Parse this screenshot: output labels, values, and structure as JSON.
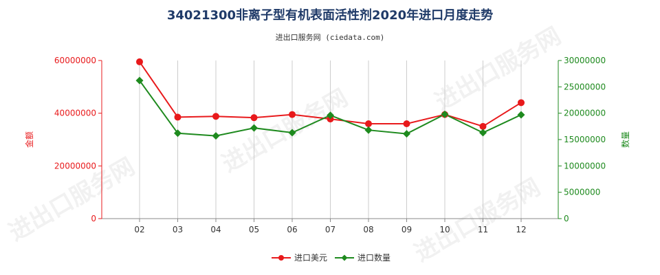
{
  "chart_data": {
    "type": "line",
    "title": "34021300非离子型有机表面活性剂2020年进口月度走势",
    "subtitle": "进出口服务网 (ciedata.com)",
    "categories": [
      "02",
      "03",
      "04",
      "05",
      "06",
      "07",
      "08",
      "09",
      "10",
      "11",
      "12"
    ],
    "y_left": {
      "label": "金额",
      "range": [
        0,
        60000000
      ],
      "ticks": [
        0,
        20000000,
        40000000,
        60000000
      ],
      "tick_labels": [
        "0",
        "20000000",
        "40000000",
        "60000000"
      ],
      "color": "#e8191b"
    },
    "y_right": {
      "label": "数量",
      "range": [
        0,
        30000000
      ],
      "ticks": [
        0,
        5000000,
        10000000,
        15000000,
        20000000,
        25000000,
        30000000
      ],
      "tick_labels": [
        "0",
        "5000000",
        "10000000",
        "15000000",
        "20000000",
        "25000000",
        "30000000"
      ],
      "color": "#1e8a1e"
    },
    "series": [
      {
        "name": "进口美元",
        "axis": "left",
        "color": "#e8191b",
        "marker": "circle",
        "values": [
          59500000,
          38500000,
          38800000,
          38300000,
          39500000,
          37800000,
          36000000,
          36000000,
          39500000,
          35000000,
          44000000
        ]
      },
      {
        "name": "进口数量",
        "axis": "right",
        "color": "#1e8a1e",
        "marker": "diamond",
        "values": [
          26200000,
          16200000,
          15700000,
          17200000,
          16300000,
          19600000,
          16800000,
          16100000,
          19800000,
          16300000,
          19700000
        ]
      }
    ],
    "grid": "vertical",
    "legend_position": "bottom-center"
  },
  "watermark": {
    "text": "进出口服务网"
  }
}
